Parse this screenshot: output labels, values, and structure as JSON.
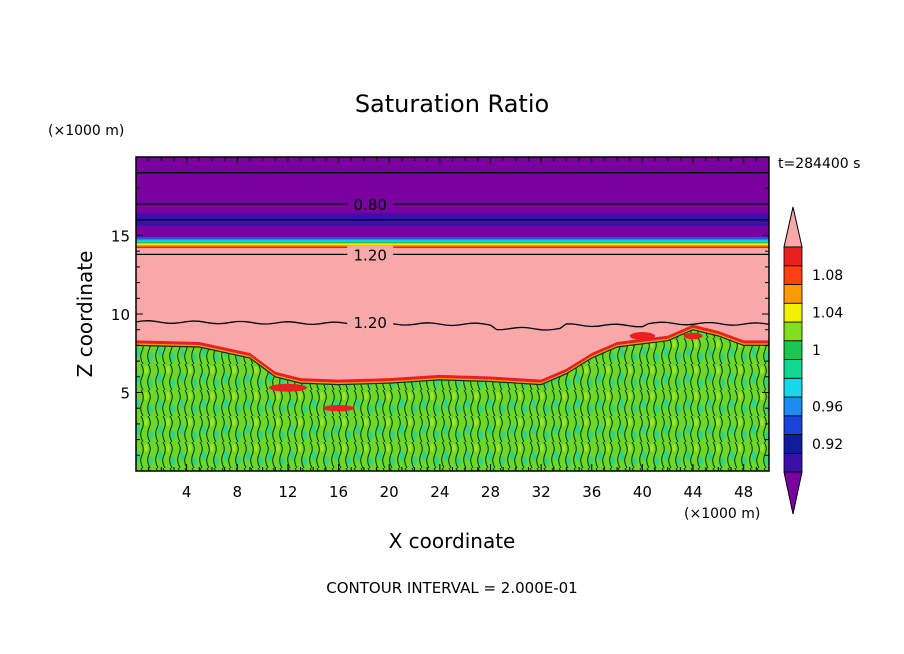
{
  "chart_data": {
    "type": "contour",
    "title": "Saturation Ratio",
    "xlabel": "X coordinate",
    "ylabel": "Z coordinate",
    "x_units": "(×1000 m)",
    "y_units": "(×1000 m)",
    "time_label": "t=284400 s",
    "footer": "CONTOUR INTERVAL = 2.000E-01",
    "xlim": [
      0,
      50
    ],
    "ylim": [
      0,
      20
    ],
    "x_ticks": [
      4,
      8,
      12,
      16,
      20,
      24,
      28,
      32,
      36,
      40,
      44,
      48
    ],
    "y_ticks": [
      5,
      10,
      15
    ],
    "contour_labels": [
      {
        "text": "0.80",
        "x": 17,
        "z": 17.0
      },
      {
        "text": "1.20",
        "x": 17,
        "z": 13.8
      },
      {
        "text": "1.20",
        "x": 17,
        "z": 9.5
      }
    ],
    "contour_lines": [
      {
        "name": "line-19.0",
        "z": [
          19.0,
          19.0
        ]
      },
      {
        "name": "line-0.80",
        "z": [
          17.0,
          17.0
        ]
      },
      {
        "name": "line-16.0",
        "z": [
          16.0,
          16.0
        ]
      },
      {
        "name": "line-1.20-upper",
        "z": [
          13.8,
          13.8
        ]
      },
      {
        "name": "line-1.20-lower",
        "z": [
          9.5,
          9.2
        ]
      }
    ],
    "layers": [
      {
        "name": "upper dry layer",
        "color": "#7a00a0",
        "z_range": [
          14.9,
          20
        ]
      },
      {
        "name": "dark band",
        "color": "#3a10a8",
        "z_range": [
          15.6,
          16.4
        ]
      },
      {
        "name": "supersaturated layer",
        "color": "#f8a8a8",
        "z_range": [
          6,
          14.2
        ]
      },
      {
        "name": "cloud layer",
        "color": "#6bd82a",
        "z_range": [
          0,
          8
        ]
      }
    ],
    "colorbar": {
      "tick_labels": [
        "1.08",
        "1.04",
        "1",
        "0.96",
        "0.92"
      ],
      "levels": [
        {
          "value": "0.90",
          "color": "#3a10a8"
        },
        {
          "value": "0.92",
          "color": "#101c9c"
        },
        {
          "value": "0.94",
          "color": "#1a44d8"
        },
        {
          "value": "0.96",
          "color": "#1c8cf0"
        },
        {
          "value": "0.98",
          "color": "#18d8e8"
        },
        {
          "value": "0.99",
          "color": "#10d890"
        },
        {
          "value": "1.00",
          "color": "#18c850"
        },
        {
          "value": "1.02",
          "color": "#80e020"
        },
        {
          "value": "1.04",
          "color": "#f0f000"
        },
        {
          "value": "1.06",
          "color": "#ff9900"
        },
        {
          "value": "1.08",
          "color": "#ff4010"
        },
        {
          "value": "1.10",
          "color": "#e82020"
        }
      ],
      "below_color": "#7a00a0",
      "above_color": "#f8a8a8"
    }
  }
}
